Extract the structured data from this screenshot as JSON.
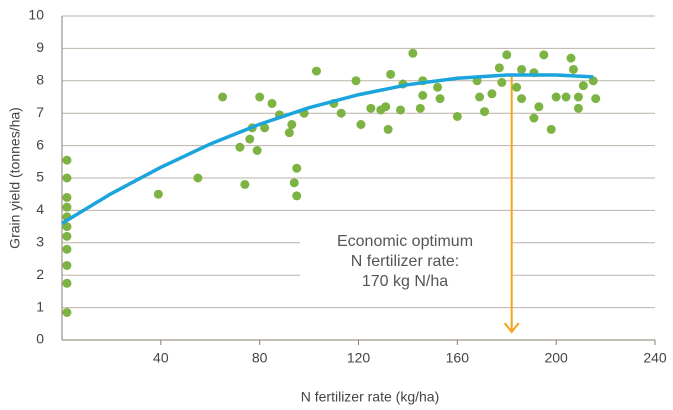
{
  "chart_data": {
    "type": "scatter",
    "xlabel": "N fertilizer rate (kg/ha)",
    "ylabel": "Grain yield (tonnes/ha)",
    "xlim": [
      0,
      240
    ],
    "ylim": [
      0,
      10
    ],
    "xticks": [
      40,
      80,
      120,
      160,
      200,
      240
    ],
    "yticks": [
      0,
      1,
      2,
      3,
      4,
      5,
      6,
      7,
      8,
      9,
      10
    ],
    "grid": true,
    "series": [
      {
        "type": "scatter",
        "color": "#7cb342",
        "x": [
          2,
          2,
          2,
          2,
          2,
          2,
          2,
          2,
          2,
          2,
          2,
          39,
          55,
          65,
          72,
          74,
          76,
          77,
          79,
          80,
          82,
          85,
          88,
          92,
          93,
          94,
          95,
          95,
          98,
          103,
          110,
          113,
          119,
          121,
          125,
          129,
          131,
          132,
          133,
          137,
          138,
          142,
          145,
          146,
          146,
          152,
          153,
          160,
          168,
          169,
          171,
          174,
          177,
          178,
          180,
          184,
          186,
          186,
          191,
          191,
          193,
          195,
          198,
          200,
          204,
          206,
          207,
          209,
          209,
          211,
          215,
          216
        ],
        "values": [
          5.55,
          5.0,
          4.4,
          4.1,
          3.8,
          3.5,
          3.2,
          2.8,
          2.3,
          1.75,
          0.85,
          4.5,
          5.0,
          7.5,
          5.95,
          4.8,
          6.2,
          6.55,
          5.85,
          7.5,
          6.55,
          7.3,
          6.95,
          6.4,
          6.65,
          4.85,
          4.45,
          5.3,
          7.0,
          8.3,
          7.3,
          7.0,
          8.0,
          6.65,
          7.15,
          7.1,
          7.2,
          6.5,
          8.2,
          7.1,
          7.9,
          8.85,
          7.15,
          7.55,
          8.0,
          7.8,
          7.45,
          6.9,
          8.0,
          7.5,
          7.05,
          7.6,
          8.4,
          7.95,
          8.8,
          7.8,
          8.35,
          7.45,
          6.85,
          8.25,
          7.2,
          8.8,
          6.5,
          7.5,
          7.5,
          8.7,
          8.35,
          7.5,
          7.15,
          7.85,
          8.0,
          7.45
        ]
      },
      {
        "type": "line",
        "color": "#1ca4dc",
        "x": [
          0,
          20,
          40,
          60,
          80,
          100,
          120,
          140,
          160,
          180,
          200,
          215
        ],
        "values": [
          3.6,
          4.52,
          5.33,
          6.05,
          6.66,
          7.17,
          7.57,
          7.88,
          8.08,
          8.18,
          8.18,
          8.12
        ]
      }
    ],
    "annotation": {
      "lines": [
        "Economic optimum",
        "N fertilizer rate:",
        "170 kg N/ha"
      ],
      "x": 182,
      "y": 8.2,
      "color": "#f7a21b"
    }
  }
}
